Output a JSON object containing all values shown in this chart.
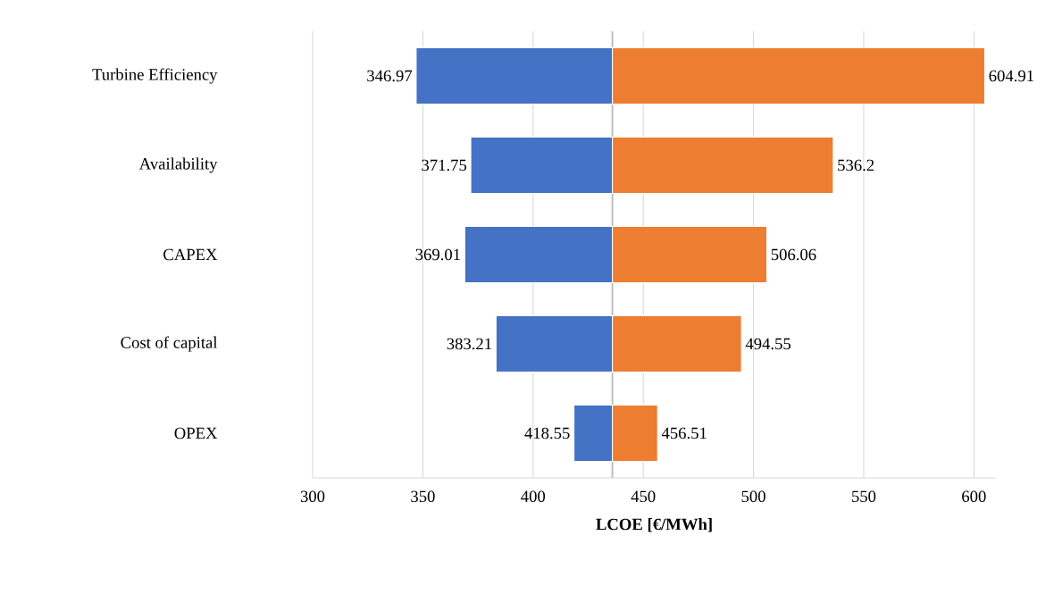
{
  "chart_data": {
    "type": "bar",
    "orientation": "horizontal",
    "categories": [
      "Turbine Efficiency",
      "Availability",
      "CAPEX",
      "Cost of capital",
      "OPEX"
    ],
    "series": [
      {
        "color": "#4472c4",
        "base": [
          436,
          436,
          436,
          436,
          436
        ],
        "values": [
          -89.03,
          -64.25,
          -66.99,
          -52.79,
          -17.45
        ],
        "value_labels": [
          "346.97",
          "371.75",
          "369.01",
          "383.21",
          "418.55"
        ]
      },
      {
        "color": "#ed7d31",
        "base": [
          436,
          436,
          436,
          436,
          436
        ],
        "values": [
          168.91,
          100.2,
          70.06,
          58.55,
          20.51
        ],
        "value_labels": [
          "604.91",
          "536.2",
          "506.06",
          "494.55",
          "456.51"
        ]
      }
    ],
    "xlabel": "LCOE [€/MWh]",
    "xlim": [
      300,
      610
    ],
    "xticks": [
      300,
      350,
      400,
      450,
      500,
      550,
      600
    ],
    "grid": "x",
    "ref_lines": [
      {
        "axis": "x",
        "value": 436,
        "color": "#bfbfbf"
      }
    ]
  }
}
